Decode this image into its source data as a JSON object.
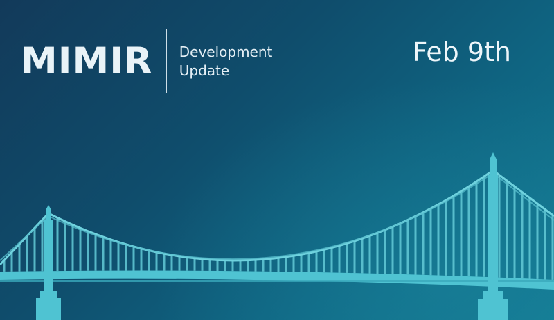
{
  "brand": {
    "name": "MIMIR",
    "subtitle_line1": "Development",
    "subtitle_line2": "Update"
  },
  "date": "Feb 9th",
  "colors": {
    "background_dark": "#123a5a",
    "background_light": "#137b94",
    "text": "#eef6fa",
    "bridge": "#4fc3d2",
    "bridge_cables": "#6fd2de"
  },
  "illustration": "suspension-bridge"
}
